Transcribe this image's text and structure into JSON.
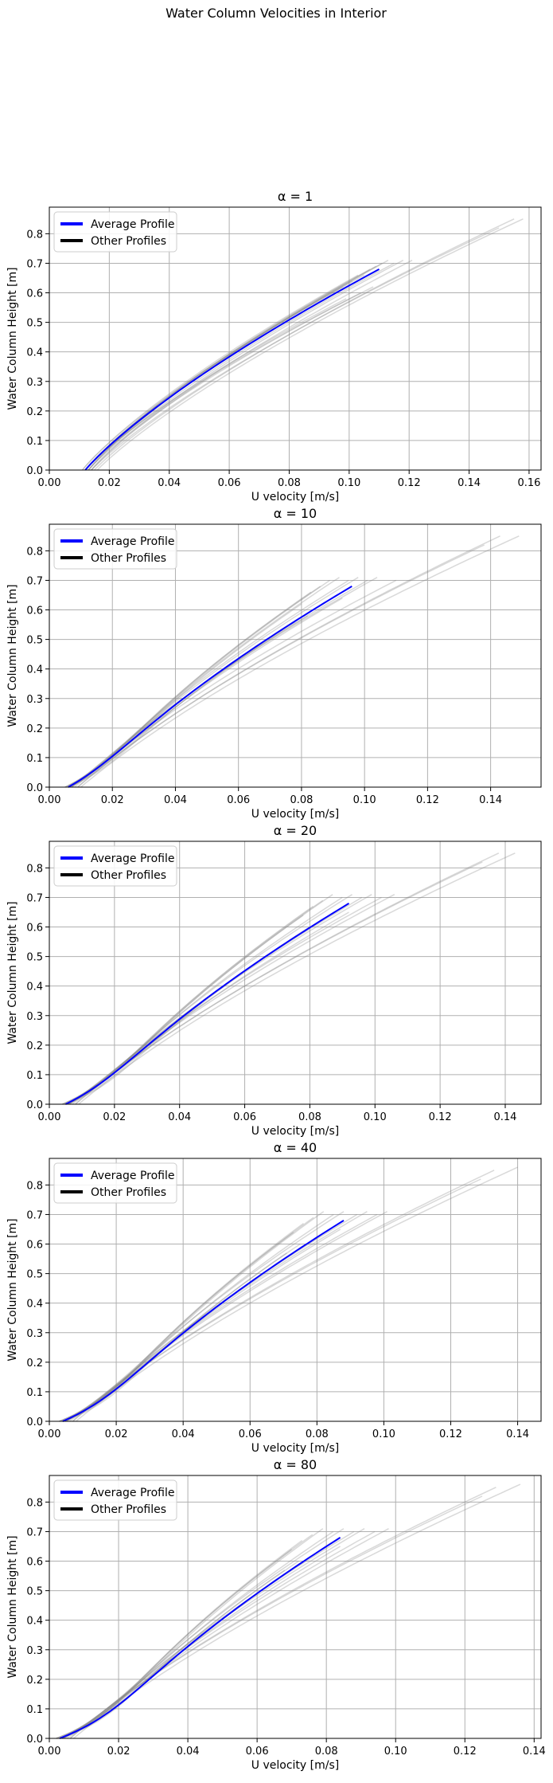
{
  "figure": {
    "suptitle": "Water Column Velocities in Interior"
  },
  "colors": {
    "average": "#0000ff",
    "other_legend": "#000000",
    "other_lines": "#808080",
    "grid": "#b0b0b0"
  },
  "chart_data": [
    {
      "type": "line",
      "title": "α = 1",
      "xlabel": "U velocity [m/s]",
      "ylabel": "Water Column Height [m]",
      "xlim": [
        0.0,
        0.164
      ],
      "ylim": [
        0.0,
        0.89
      ],
      "xticks": [
        "0.00",
        "0.02",
        "0.04",
        "0.06",
        "0.08",
        "0.10",
        "0.12",
        "0.14",
        "0.16"
      ],
      "yticks": [
        "0.0",
        "0.1",
        "0.2",
        "0.3",
        "0.4",
        "0.5",
        "0.6",
        "0.7",
        "0.8"
      ],
      "grid": true,
      "legend": {
        "position": "top-left",
        "entries": [
          "Average Profile",
          "Other Profiles"
        ]
      },
      "series": [
        {
          "name": "Average Profile",
          "u0": 0.012,
          "u_top": 0.11,
          "h_top": 0.68,
          "bump": 0.0
        }
      ],
      "other_profiles": [
        {
          "u0": 0.011,
          "u_top": 0.098,
          "h_top": 0.62,
          "bump": 0.0
        },
        {
          "u0": 0.012,
          "u_top": 0.101,
          "h_top": 0.64,
          "bump": 0.0
        },
        {
          "u0": 0.011,
          "u_top": 0.103,
          "h_top": 0.66,
          "bump": 0.0
        },
        {
          "u0": 0.012,
          "u_top": 0.105,
          "h_top": 0.66,
          "bump": 0.0
        },
        {
          "u0": 0.012,
          "u_top": 0.107,
          "h_top": 0.68,
          "bump": 0.0
        },
        {
          "u0": 0.012,
          "u_top": 0.109,
          "h_top": 0.69,
          "bump": 0.0
        },
        {
          "u0": 0.013,
          "u_top": 0.111,
          "h_top": 0.7,
          "bump": 0.0
        },
        {
          "u0": 0.013,
          "u_top": 0.113,
          "h_top": 0.71,
          "bump": 0.0
        },
        {
          "u0": 0.013,
          "u_top": 0.115,
          "h_top": 0.7,
          "bump": 0.0
        },
        {
          "u0": 0.014,
          "u_top": 0.118,
          "h_top": 0.71,
          "bump": 0.0
        },
        {
          "u0": 0.014,
          "u_top": 0.121,
          "h_top": 0.71,
          "bump": 0.0
        },
        {
          "u0": 0.012,
          "u_top": 0.104,
          "h_top": 0.6,
          "bump": 0.0
        },
        {
          "u0": 0.013,
          "u_top": 0.108,
          "h_top": 0.62,
          "bump": 0.0
        },
        {
          "u0": 0.012,
          "u_top": 0.099,
          "h_top": 0.58,
          "bump": 0.0
        },
        {
          "u0": 0.015,
          "u_top": 0.155,
          "h_top": 0.85,
          "bump": 0.0
        },
        {
          "u0": 0.016,
          "u_top": 0.158,
          "h_top": 0.85,
          "bump": 0.0
        },
        {
          "u0": 0.014,
          "u_top": 0.15,
          "h_top": 0.82,
          "bump": 0.0
        }
      ]
    },
    {
      "type": "line",
      "title": "α = 10",
      "xlabel": "U velocity [m/s]",
      "ylabel": "Water Column Height [m]",
      "xlim": [
        0.0,
        0.156
      ],
      "ylim": [
        0.0,
        0.89
      ],
      "xticks": [
        "0.00",
        "0.02",
        "0.04",
        "0.06",
        "0.08",
        "0.10",
        "0.12",
        "0.14"
      ],
      "yticks": [
        "0.0",
        "0.1",
        "0.2",
        "0.3",
        "0.4",
        "0.5",
        "0.6",
        "0.7",
        "0.8"
      ],
      "grid": true,
      "legend": {
        "position": "top-left",
        "entries": [
          "Average Profile",
          "Other Profiles"
        ]
      },
      "series": [
        {
          "name": "Average Profile",
          "u0": 0.006,
          "u_top": 0.096,
          "h_top": 0.68,
          "bump": 0.35
        }
      ],
      "other_profiles": [
        {
          "u0": 0.005,
          "u_top": 0.08,
          "h_top": 0.62,
          "bump": 0.6
        },
        {
          "u0": 0.005,
          "u_top": 0.083,
          "h_top": 0.66,
          "bump": 0.55
        },
        {
          "u0": 0.005,
          "u_top": 0.086,
          "h_top": 0.68,
          "bump": 0.5
        },
        {
          "u0": 0.006,
          "u_top": 0.089,
          "h_top": 0.7,
          "bump": 0.45
        },
        {
          "u0": 0.006,
          "u_top": 0.092,
          "h_top": 0.71,
          "bump": 0.4
        },
        {
          "u0": 0.006,
          "u_top": 0.095,
          "h_top": 0.7,
          "bump": 0.3
        },
        {
          "u0": 0.007,
          "u_top": 0.098,
          "h_top": 0.71,
          "bump": 0.25
        },
        {
          "u0": 0.007,
          "u_top": 0.101,
          "h_top": 0.7,
          "bump": 0.2
        },
        {
          "u0": 0.007,
          "u_top": 0.104,
          "h_top": 0.71,
          "bump": 0.15
        },
        {
          "u0": 0.008,
          "u_top": 0.11,
          "h_top": 0.7,
          "bump": 0.1
        },
        {
          "u0": 0.006,
          "u_top": 0.082,
          "h_top": 0.58,
          "bump": 0.5
        },
        {
          "u0": 0.006,
          "u_top": 0.078,
          "h_top": 0.56,
          "bump": 0.6
        },
        {
          "u0": 0.007,
          "u_top": 0.093,
          "h_top": 0.64,
          "bump": 0.3
        },
        {
          "u0": 0.009,
          "u_top": 0.143,
          "h_top": 0.85,
          "bump": 0.05
        },
        {
          "u0": 0.01,
          "u_top": 0.149,
          "h_top": 0.85,
          "bump": 0.05
        },
        {
          "u0": 0.009,
          "u_top": 0.138,
          "h_top": 0.82,
          "bump": 0.05
        }
      ]
    },
    {
      "type": "line",
      "title": "α = 20",
      "xlabel": "U velocity [m/s]",
      "ylabel": "Water Column Height [m]",
      "xlim": [
        0.0,
        0.151
      ],
      "ylim": [
        0.0,
        0.89
      ],
      "xticks": [
        "0.00",
        "0.02",
        "0.04",
        "0.06",
        "0.08",
        "0.10",
        "0.12",
        "0.14"
      ],
      "yticks": [
        "0.0",
        "0.1",
        "0.2",
        "0.3",
        "0.4",
        "0.5",
        "0.6",
        "0.7",
        "0.8"
      ],
      "grid": true,
      "legend": {
        "position": "top-left",
        "entries": [
          "Average Profile",
          "Other Profiles"
        ]
      },
      "series": [
        {
          "name": "Average Profile",
          "u0": 0.005,
          "u_top": 0.092,
          "h_top": 0.68,
          "bump": 0.45
        }
      ],
      "other_profiles": [
        {
          "u0": 0.004,
          "u_top": 0.078,
          "h_top": 0.64,
          "bump": 0.7
        },
        {
          "u0": 0.004,
          "u_top": 0.081,
          "h_top": 0.67,
          "bump": 0.65
        },
        {
          "u0": 0.004,
          "u_top": 0.084,
          "h_top": 0.69,
          "bump": 0.6
        },
        {
          "u0": 0.005,
          "u_top": 0.087,
          "h_top": 0.71,
          "bump": 0.55
        },
        {
          "u0": 0.005,
          "u_top": 0.09,
          "h_top": 0.7,
          "bump": 0.45
        },
        {
          "u0": 0.005,
          "u_top": 0.093,
          "h_top": 0.71,
          "bump": 0.4
        },
        {
          "u0": 0.006,
          "u_top": 0.096,
          "h_top": 0.7,
          "bump": 0.3
        },
        {
          "u0": 0.006,
          "u_top": 0.099,
          "h_top": 0.71,
          "bump": 0.25
        },
        {
          "u0": 0.006,
          "u_top": 0.102,
          "h_top": 0.7,
          "bump": 0.2
        },
        {
          "u0": 0.007,
          "u_top": 0.106,
          "h_top": 0.71,
          "bump": 0.15
        },
        {
          "u0": 0.005,
          "u_top": 0.08,
          "h_top": 0.6,
          "bump": 0.6
        },
        {
          "u0": 0.005,
          "u_top": 0.076,
          "h_top": 0.57,
          "bump": 0.7
        },
        {
          "u0": 0.006,
          "u_top": 0.092,
          "h_top": 0.65,
          "bump": 0.35
        },
        {
          "u0": 0.008,
          "u_top": 0.138,
          "h_top": 0.85,
          "bump": 0.05
        },
        {
          "u0": 0.009,
          "u_top": 0.143,
          "h_top": 0.85,
          "bump": 0.05
        },
        {
          "u0": 0.008,
          "u_top": 0.133,
          "h_top": 0.82,
          "bump": 0.05
        }
      ]
    },
    {
      "type": "line",
      "title": "α = 40",
      "xlabel": "U velocity [m/s]",
      "ylabel": "Water Column Height [m]",
      "xlim": [
        0.0,
        0.147
      ],
      "ylim": [
        0.0,
        0.89
      ],
      "xticks": [
        "0.00",
        "0.02",
        "0.04",
        "0.06",
        "0.08",
        "0.10",
        "0.12",
        "0.14"
      ],
      "yticks": [
        "0.0",
        "0.1",
        "0.2",
        "0.3",
        "0.4",
        "0.5",
        "0.6",
        "0.7",
        "0.8"
      ],
      "grid": true,
      "legend": {
        "position": "top-left",
        "entries": [
          "Average Profile",
          "Other Profiles"
        ]
      },
      "series": [
        {
          "name": "Average Profile",
          "u0": 0.004,
          "u_top": 0.088,
          "h_top": 0.68,
          "bump": 0.55
        }
      ],
      "other_profiles": [
        {
          "u0": 0.003,
          "u_top": 0.073,
          "h_top": 0.64,
          "bump": 0.8
        },
        {
          "u0": 0.003,
          "u_top": 0.076,
          "h_top": 0.67,
          "bump": 0.75
        },
        {
          "u0": 0.003,
          "u_top": 0.079,
          "h_top": 0.69,
          "bump": 0.7
        },
        {
          "u0": 0.004,
          "u_top": 0.082,
          "h_top": 0.71,
          "bump": 0.65
        },
        {
          "u0": 0.004,
          "u_top": 0.085,
          "h_top": 0.7,
          "bump": 0.55
        },
        {
          "u0": 0.004,
          "u_top": 0.088,
          "h_top": 0.71,
          "bump": 0.45
        },
        {
          "u0": 0.005,
          "u_top": 0.092,
          "h_top": 0.7,
          "bump": 0.35
        },
        {
          "u0": 0.005,
          "u_top": 0.095,
          "h_top": 0.71,
          "bump": 0.3
        },
        {
          "u0": 0.005,
          "u_top": 0.098,
          "h_top": 0.7,
          "bump": 0.25
        },
        {
          "u0": 0.006,
          "u_top": 0.101,
          "h_top": 0.71,
          "bump": 0.2
        },
        {
          "u0": 0.004,
          "u_top": 0.075,
          "h_top": 0.6,
          "bump": 0.7
        },
        {
          "u0": 0.004,
          "u_top": 0.071,
          "h_top": 0.57,
          "bump": 0.8
        },
        {
          "u0": 0.005,
          "u_top": 0.087,
          "h_top": 0.65,
          "bump": 0.4
        },
        {
          "u0": 0.007,
          "u_top": 0.133,
          "h_top": 0.85,
          "bump": 0.05
        },
        {
          "u0": 0.008,
          "u_top": 0.14,
          "h_top": 0.86,
          "bump": 0.05
        },
        {
          "u0": 0.007,
          "u_top": 0.129,
          "h_top": 0.82,
          "bump": 0.05
        }
      ]
    },
    {
      "type": "line",
      "title": "α = 80",
      "xlabel": "U velocity [m/s]",
      "ylabel": "Water Column Height [m]",
      "xlim": [
        0.0,
        0.142
      ],
      "ylim": [
        0.0,
        0.89
      ],
      "xticks": [
        "0.00",
        "0.02",
        "0.04",
        "0.06",
        "0.08",
        "0.10",
        "0.12",
        "0.14"
      ],
      "yticks": [
        "0.0",
        "0.1",
        "0.2",
        "0.3",
        "0.4",
        "0.5",
        "0.6",
        "0.7",
        "0.8"
      ],
      "grid": true,
      "legend": {
        "position": "top-left",
        "entries": [
          "Average Profile",
          "Other Profiles"
        ]
      },
      "series": [
        {
          "name": "Average Profile",
          "u0": 0.003,
          "u_top": 0.084,
          "h_top": 0.68,
          "bump": 0.65
        }
      ],
      "other_profiles": [
        {
          "u0": 0.002,
          "u_top": 0.07,
          "h_top": 0.64,
          "bump": 0.85
        },
        {
          "u0": 0.002,
          "u_top": 0.073,
          "h_top": 0.67,
          "bump": 0.8
        },
        {
          "u0": 0.002,
          "u_top": 0.076,
          "h_top": 0.69,
          "bump": 0.75
        },
        {
          "u0": 0.003,
          "u_top": 0.079,
          "h_top": 0.71,
          "bump": 0.7
        },
        {
          "u0": 0.003,
          "u_top": 0.082,
          "h_top": 0.7,
          "bump": 0.6
        },
        {
          "u0": 0.003,
          "u_top": 0.085,
          "h_top": 0.71,
          "bump": 0.5
        },
        {
          "u0": 0.004,
          "u_top": 0.088,
          "h_top": 0.7,
          "bump": 0.4
        },
        {
          "u0": 0.004,
          "u_top": 0.091,
          "h_top": 0.71,
          "bump": 0.35
        },
        {
          "u0": 0.004,
          "u_top": 0.094,
          "h_top": 0.7,
          "bump": 0.3
        },
        {
          "u0": 0.005,
          "u_top": 0.098,
          "h_top": 0.71,
          "bump": 0.25
        },
        {
          "u0": 0.003,
          "u_top": 0.072,
          "h_top": 0.6,
          "bump": 0.75
        },
        {
          "u0": 0.003,
          "u_top": 0.068,
          "h_top": 0.57,
          "bump": 0.85
        },
        {
          "u0": 0.004,
          "u_top": 0.084,
          "h_top": 0.65,
          "bump": 0.45
        },
        {
          "u0": 0.006,
          "u_top": 0.129,
          "h_top": 0.85,
          "bump": 0.05
        },
        {
          "u0": 0.007,
          "u_top": 0.136,
          "h_top": 0.86,
          "bump": 0.05
        },
        {
          "u0": 0.006,
          "u_top": 0.125,
          "h_top": 0.82,
          "bump": 0.05
        }
      ]
    }
  ]
}
